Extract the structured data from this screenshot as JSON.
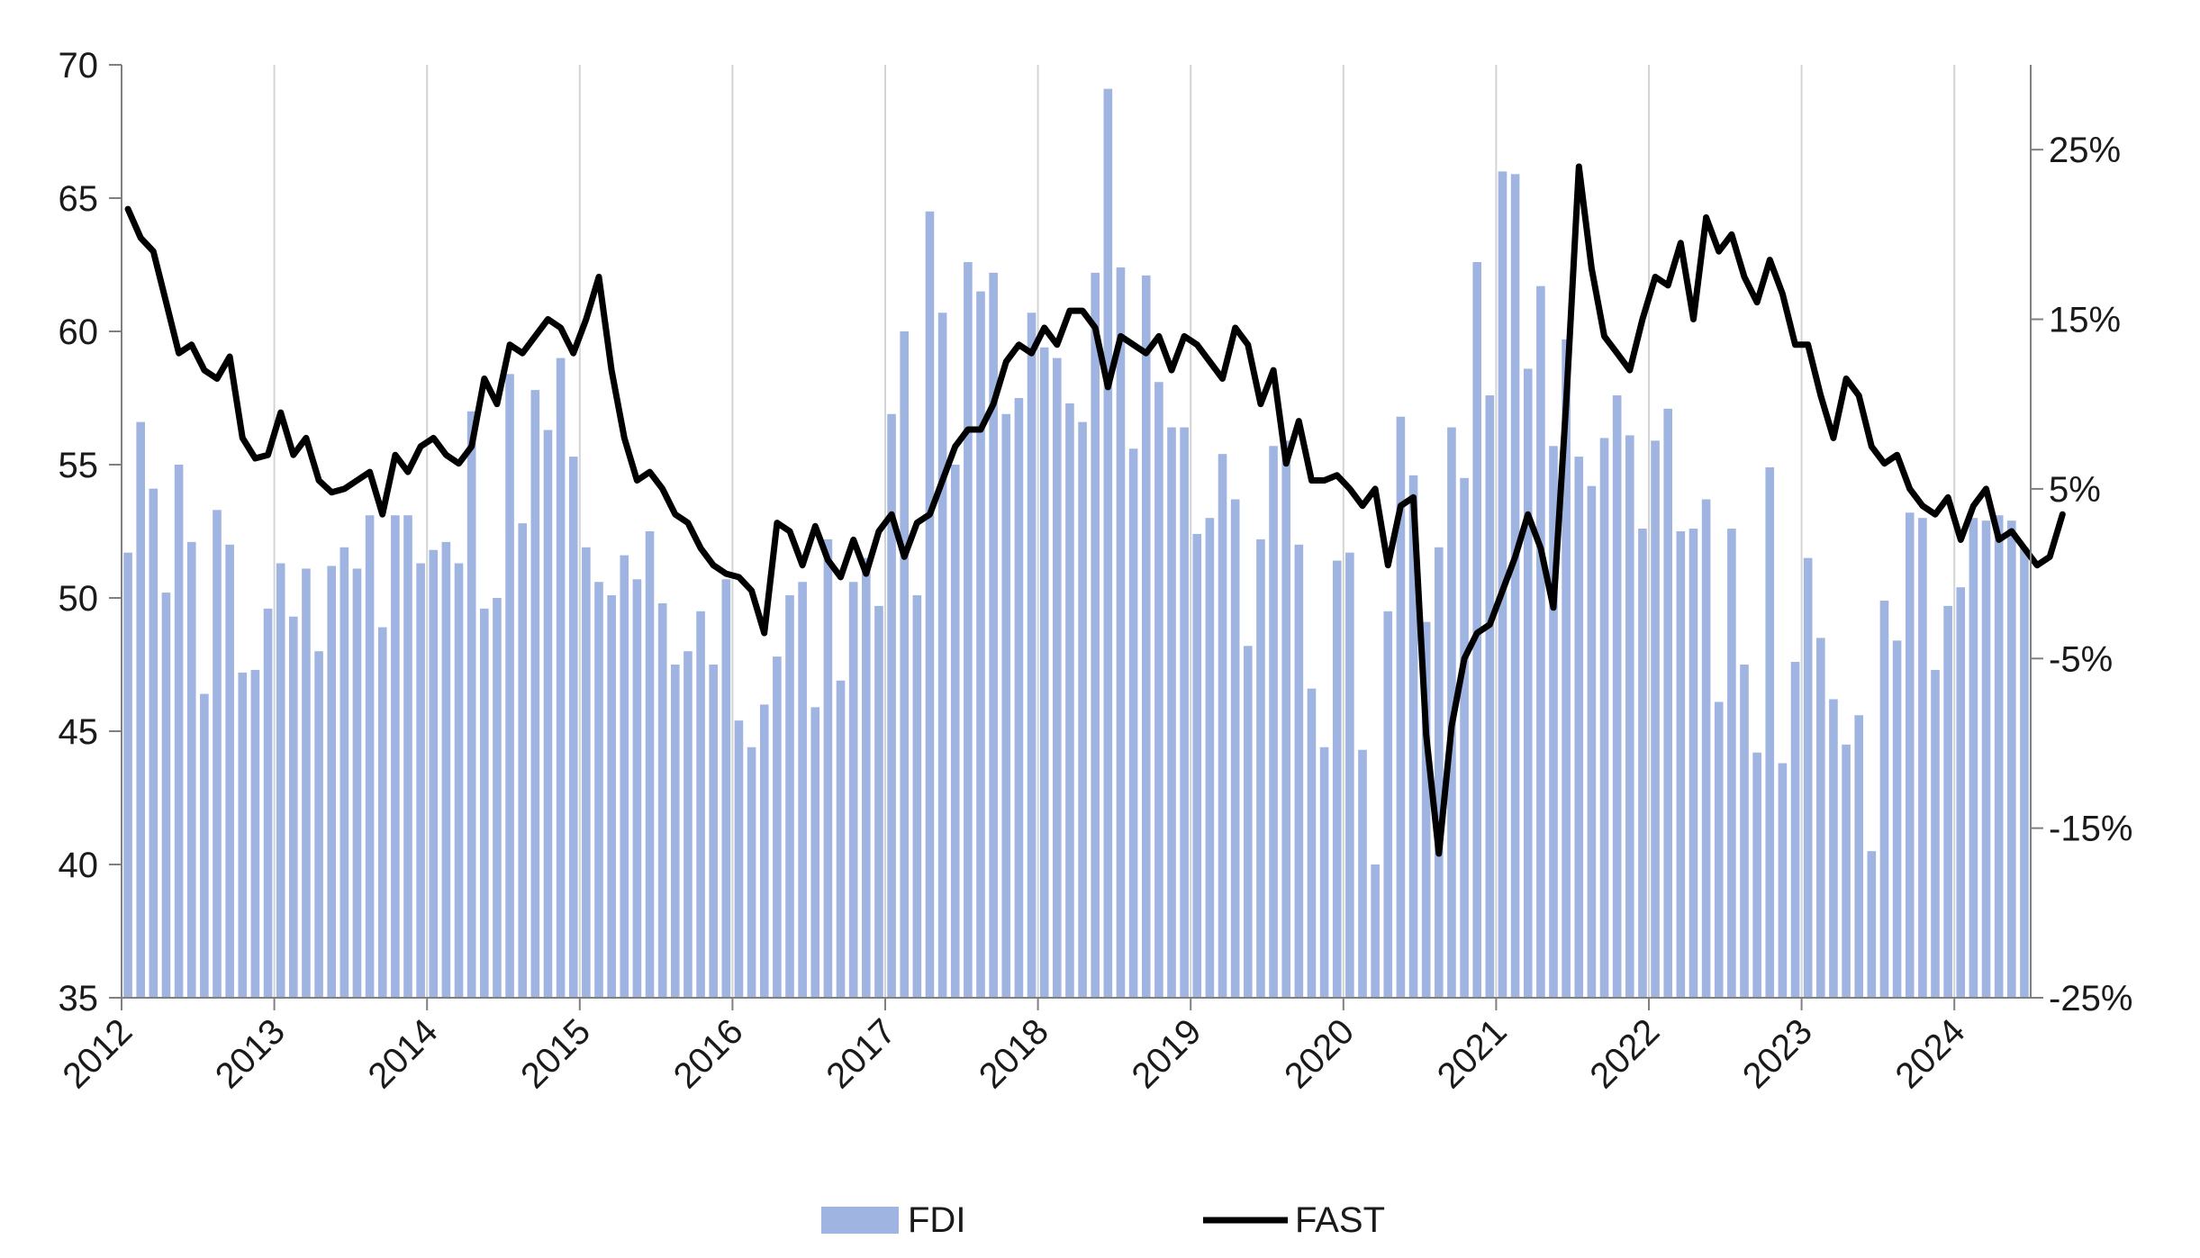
{
  "chart_data": {
    "type": "bar",
    "grid": "vertical-at-year-boundaries",
    "legend_position": "bottom-center",
    "x": {
      "start_year": 2012,
      "end_year": 2024,
      "tick_labels": [
        "2012",
        "2013",
        "2014",
        "2015",
        "2016",
        "2017",
        "2018",
        "2019",
        "2020",
        "2021",
        "2022",
        "2023",
        "2024"
      ]
    },
    "y_left": {
      "ylim": [
        35,
        70
      ],
      "ticks": [
        35,
        40,
        45,
        50,
        55,
        60,
        65,
        70
      ],
      "tick_labels": [
        "35",
        "40",
        "45",
        "50",
        "55",
        "60",
        "65",
        "70"
      ]
    },
    "y_right": {
      "ylim": [
        -25,
        30
      ],
      "ticks": [
        -25,
        -15,
        -5,
        5,
        15,
        25
      ],
      "tick_labels": [
        "-25%",
        "-15%",
        "-5%",
        "5%",
        "15%",
        "25%"
      ]
    },
    "series": [
      {
        "name": "FDI",
        "kind": "bar",
        "axis": "left",
        "color": "#9fb4e0",
        "values": [
          51.7,
          56.6,
          54.1,
          50.2,
          55.0,
          52.1,
          46.4,
          53.3,
          52.0,
          47.2,
          47.3,
          49.6,
          51.3,
          49.3,
          51.1,
          48.0,
          51.2,
          51.9,
          51.1,
          53.1,
          48.9,
          53.1,
          53.1,
          51.3,
          51.8,
          52.1,
          51.3,
          57.0,
          49.6,
          50.0,
          58.4,
          52.8,
          57.8,
          56.3,
          59.0,
          55.3,
          51.9,
          50.6,
          50.1,
          51.6,
          50.7,
          52.5,
          49.8,
          47.5,
          48.0,
          49.5,
          47.5,
          50.7,
          45.4,
          44.4,
          46.0,
          47.8,
          50.1,
          50.6,
          45.9,
          52.2,
          46.9,
          50.6,
          51.5,
          49.7,
          56.9,
          60.0,
          50.1,
          64.5,
          60.7,
          55.0,
          62.6,
          61.5,
          62.2,
          56.9,
          57.5,
          60.7,
          59.4,
          59.0,
          57.3,
          56.6,
          62.2,
          69.1,
          62.4,
          55.6,
          62.1,
          58.1,
          56.4,
          56.4,
          52.4,
          53.0,
          55.4,
          53.7,
          48.2,
          52.2,
          55.7,
          55.9,
          52.0,
          46.6,
          44.4,
          51.4,
          51.7,
          44.3,
          40.0,
          49.5,
          56.8,
          54.6,
          49.1,
          51.9,
          56.4,
          54.5,
          62.6,
          57.6,
          66.0,
          65.9,
          58.6,
          61.7,
          55.7,
          59.7,
          55.3,
          54.2,
          56.0,
          57.6,
          56.1,
          52.6,
          55.9,
          57.1,
          52.5,
          52.6,
          53.7,
          46.1,
          52.6,
          47.5,
          44.2,
          54.9,
          43.8,
          47.6,
          51.5,
          48.5,
          46.2,
          44.5,
          45.6,
          40.5,
          49.9,
          48.4,
          53.2,
          53.0,
          47.3,
          49.7,
          50.4,
          53.0,
          52.9,
          53.1,
          52.9,
          51.9
        ]
      },
      {
        "name": "FAST",
        "kind": "line",
        "axis": "right",
        "color": "#000000",
        "values": [
          21.5,
          19.8,
          19.0,
          16.0,
          13.0,
          13.5,
          12.0,
          11.5,
          12.8,
          8.0,
          6.8,
          7.0,
          9.5,
          7.0,
          8.0,
          5.5,
          4.8,
          5.0,
          5.5,
          6.0,
          3.5,
          7.0,
          6.0,
          7.5,
          8.0,
          7.0,
          6.5,
          7.5,
          11.5,
          10.0,
          13.5,
          13.0,
          14.0,
          15.0,
          14.5,
          13.0,
          15.0,
          17.5,
          12.0,
          8.0,
          5.5,
          6.0,
          5.0,
          3.5,
          3.0,
          1.5,
          0.5,
          0.0,
          -0.2,
          -1.0,
          -3.5,
          3.0,
          2.5,
          0.5,
          2.8,
          0.8,
          -0.2,
          2.0,
          0.0,
          2.5,
          3.5,
          1.0,
          3.0,
          3.5,
          5.5,
          7.5,
          8.5,
          8.5,
          10.0,
          12.5,
          13.5,
          13.0,
          14.5,
          13.5,
          15.5,
          15.5,
          14.5,
          11.0,
          14.0,
          13.5,
          13.0,
          14.0,
          12.0,
          14.0,
          13.5,
          12.5,
          11.5,
          14.5,
          13.5,
          10.0,
          12.0,
          6.5,
          9.0,
          5.5,
          5.5,
          5.8,
          5.0,
          4.0,
          5.0,
          0.5,
          4.0,
          4.5,
          -9.5,
          -16.5,
          -9.0,
          -5.0,
          -3.5,
          -3.0,
          -1.0,
          1.0,
          3.5,
          1.5,
          -2.0,
          10.0,
          24.0,
          18.0,
          14.0,
          13.0,
          12.0,
          15.0,
          17.5,
          17.0,
          19.5,
          15.0,
          21.0,
          19.0,
          20.0,
          17.5,
          16.0,
          18.5,
          16.5,
          13.5,
          13.5,
          10.5,
          8.0,
          11.5,
          10.5,
          7.5,
          6.5,
          7.0,
          5.0,
          4.0,
          3.5,
          4.5,
          2.0,
          4.0,
          5.0,
          2.0,
          2.5,
          1.5,
          0.5,
          1.0,
          3.5
        ]
      }
    ]
  }
}
